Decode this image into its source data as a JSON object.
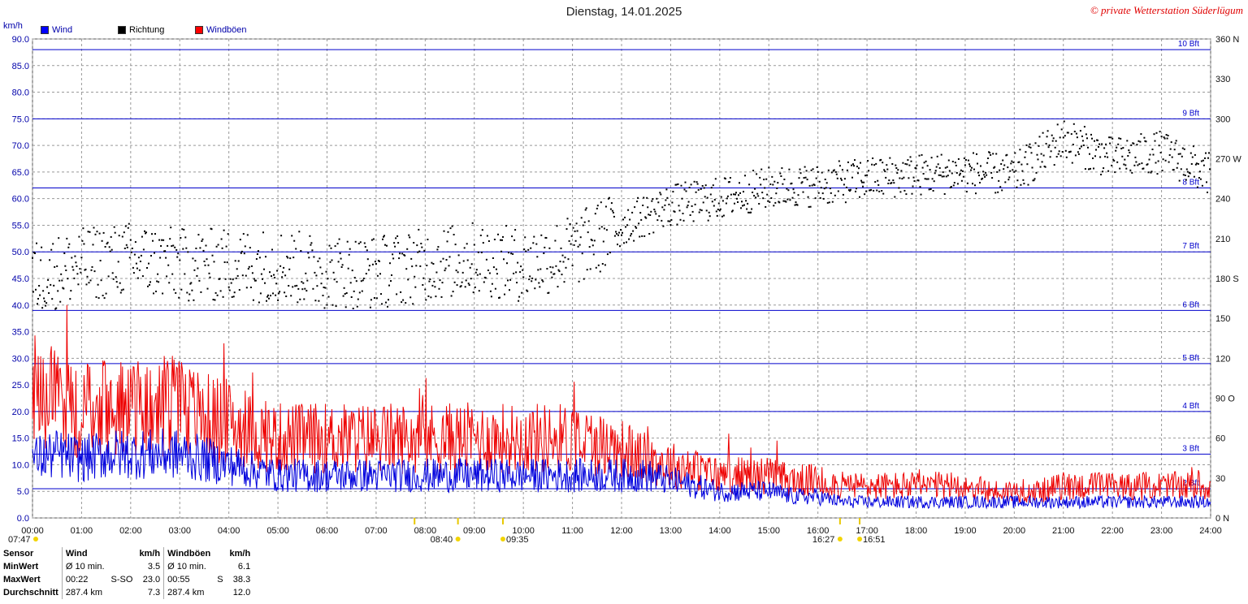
{
  "header": {
    "title": "Dienstag, 14.01.2025",
    "copyright": "© private Wetterstation Süderlügum",
    "unit": "km/h"
  },
  "legend": [
    {
      "label": "Wind",
      "color": "#0000ff"
    },
    {
      "label": "Richtung",
      "color": "#000000"
    },
    {
      "label": "Windböen",
      "color": "#ff0000"
    }
  ],
  "colors": {
    "wind": "#0000dd",
    "gust": "#ee0000",
    "direction": "#000000",
    "bft": "#0000cc",
    "grid": "#999999"
  },
  "chart_data": {
    "type": "line",
    "x_range_hours": [
      0,
      24
    ],
    "x_tick_labels": [
      "00:00",
      "01:00",
      "02:00",
      "03:00",
      "04:00",
      "05:00",
      "06:00",
      "07:00",
      "08:00",
      "09:00",
      "10:00",
      "11:00",
      "12:00",
      "13:00",
      "14:00",
      "15:00",
      "16:00",
      "17:00",
      "18:00",
      "19:00",
      "20:00",
      "21:00",
      "22:00",
      "23:00",
      "24:00"
    ],
    "y_left_range": [
      0,
      90
    ],
    "y_left_ticks": [
      "0.0",
      "5.0",
      "10.0",
      "15.0",
      "20.0",
      "25.0",
      "30.0",
      "35.0",
      "40.0",
      "45.0",
      "50.0",
      "55.0",
      "60.0",
      "65.0",
      "70.0",
      "75.0",
      "80.0",
      "85.0",
      "90.0"
    ],
    "y_right_range": [
      0,
      360
    ],
    "y_right_ticks": [
      "0 N",
      "30",
      "60",
      "90 O",
      "120",
      "150",
      "180 S",
      "210",
      "240",
      "270 W",
      "300",
      "330",
      "360 N"
    ],
    "beaufort_lines": [
      {
        "label": "2 Bft",
        "kmh": 5.5
      },
      {
        "label": "3 Bft",
        "kmh": 12
      },
      {
        "label": "4 Bft",
        "kmh": 20
      },
      {
        "label": "5 Bft",
        "kmh": 29
      },
      {
        "label": "6 Bft",
        "kmh": 39
      },
      {
        "label": "7 Bft",
        "kmh": 50
      },
      {
        "label": "8 Bft",
        "kmh": 62
      },
      {
        "label": "9 Bft",
        "kmh": 75
      },
      {
        "label": "10 Bft",
        "kmh": 88
      }
    ],
    "series": [
      {
        "name": "Wind",
        "hours": [
          0,
          0.5,
          1,
          1.5,
          2,
          2.5,
          3,
          3.5,
          4,
          4.5,
          5,
          5.5,
          6,
          6.5,
          7,
          7.5,
          8,
          8.5,
          9,
          9.5,
          10,
          10.5,
          11,
          11.5,
          12,
          12.5,
          13,
          13.5,
          14,
          14.5,
          15,
          15.5,
          16,
          16.5,
          17,
          17.5,
          18,
          18.5,
          19,
          19.5,
          20,
          20.5,
          21,
          21.5,
          22,
          22.5,
          23,
          23.5,
          24
        ],
        "values": [
          11,
          12,
          11,
          12,
          12,
          12,
          12,
          11,
          10,
          9,
          8,
          8,
          8,
          8,
          8,
          8,
          8,
          8,
          8,
          8,
          8,
          8,
          8,
          8,
          8,
          8,
          7,
          6,
          5,
          5,
          5,
          4,
          4,
          3,
          3,
          3,
          3,
          3,
          3,
          3,
          3,
          3,
          3,
          3,
          3,
          3,
          3,
          3,
          3
        ]
      },
      {
        "name": "Windböen",
        "hours": [
          0,
          0.5,
          1,
          1.5,
          2,
          2.5,
          3,
          3.5,
          4,
          4.5,
          5,
          5.5,
          6,
          6.5,
          7,
          7.5,
          8,
          8.5,
          9,
          9.5,
          10,
          10.5,
          11,
          11.5,
          12,
          12.5,
          13,
          13.5,
          14,
          14.5,
          15,
          15.5,
          16,
          16.5,
          17,
          17.5,
          18,
          18.5,
          19,
          19.5,
          20,
          20.5,
          21,
          21.5,
          22,
          22.5,
          23,
          23.5,
          24
        ],
        "values": [
          24,
          22,
          20,
          21,
          21,
          21,
          21,
          19,
          18,
          16,
          15,
          15,
          15,
          15,
          15,
          15,
          15,
          15,
          15,
          15,
          15,
          15,
          15,
          14,
          13,
          11,
          10,
          9,
          8,
          8,
          8,
          7,
          7,
          6,
          6,
          6,
          6,
          6,
          6,
          5,
          5,
          5,
          6,
          6,
          6,
          6,
          6,
          6,
          6
        ]
      },
      {
        "name": "Richtung",
        "unit": "deg",
        "hours": [
          0,
          1,
          2,
          3,
          4,
          5,
          6,
          7,
          8,
          9,
          10,
          11,
          12,
          13,
          14,
          15,
          16,
          17,
          18,
          19,
          20,
          21,
          22,
          23,
          24
        ],
        "values": [
          180,
          190,
          195,
          190,
          190,
          190,
          185,
          185,
          190,
          195,
          190,
          200,
          220,
          235,
          240,
          248,
          250,
          255,
          258,
          260,
          258,
          285,
          270,
          275,
          258
        ]
      }
    ],
    "sun_markers": [
      {
        "label": "07:47",
        "hour": 7.783
      },
      {
        "label": "08:40",
        "hour": 8.667
      },
      {
        "label": "09:35",
        "hour": 9.583
      },
      {
        "label": "16:27",
        "hour": 16.45
      },
      {
        "label": "16:51",
        "hour": 16.85
      }
    ]
  },
  "summary": {
    "headers": {
      "sensor": "Sensor",
      "wind": "Wind",
      "wind_unit": "km/h",
      "gust": "Windböen",
      "gust_unit": "km/h"
    },
    "rows": [
      {
        "label": "MinWert",
        "w1": "Ø 10 min.",
        "w2": "",
        "w3": "3.5",
        "g1": "Ø 10 min.",
        "g2": "",
        "g3": "6.1"
      },
      {
        "label": "MaxWert",
        "w1": "00:22",
        "w2": "S-SO",
        "w3": "23.0",
        "g1": "00:55",
        "g2": "S",
        "g3": "38.3"
      },
      {
        "label": "Durchschnitt",
        "w1": "287.4 km",
        "w2": "",
        "w3": "7.3",
        "g1": "287.4 km",
        "g2": "",
        "g3": "12.0"
      }
    ]
  }
}
